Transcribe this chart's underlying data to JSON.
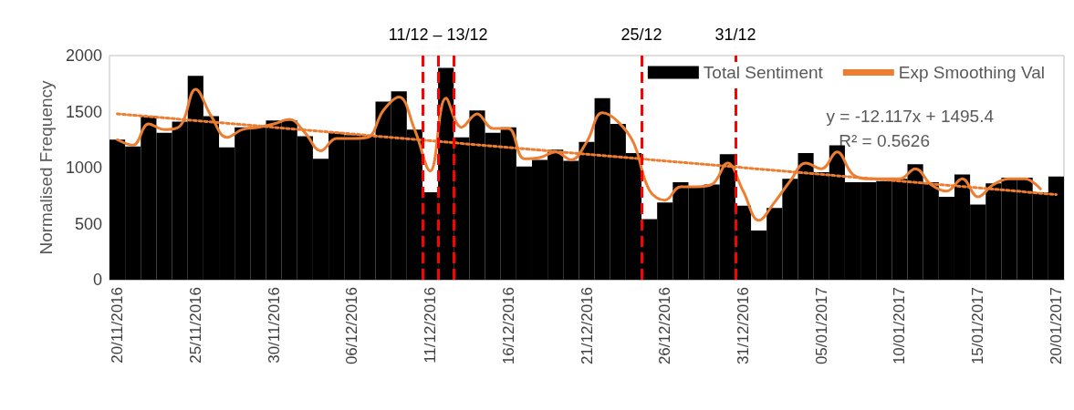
{
  "chart_data": {
    "type": "bar",
    "ylabel": "Normalised Frequency",
    "categories": [
      "20/11/2016",
      null,
      null,
      null,
      null,
      "25/11/2016",
      null,
      null,
      null,
      null,
      "30/11/2016",
      null,
      null,
      null,
      null,
      "06/12/2016",
      null,
      null,
      null,
      null,
      "11/12/2016",
      null,
      null,
      null,
      null,
      "16/12/2016",
      null,
      null,
      null,
      null,
      "21/12/2016",
      null,
      null,
      null,
      null,
      "26/12/2016",
      null,
      null,
      null,
      null,
      "31/12/2016",
      null,
      null,
      null,
      null,
      "05/01/2017",
      null,
      null,
      null,
      null,
      "10/01/2017",
      null,
      null,
      null,
      null,
      "15/01/2017",
      null,
      null,
      null,
      null,
      "20/01/2017"
    ],
    "series": [
      {
        "name": "Total Sentiment",
        "color": "#000000",
        "values": [
          1250,
          1190,
          1460,
          1310,
          1410,
          1820,
          1460,
          1180,
          1360,
          1360,
          1420,
          1420,
          1280,
          1080,
          1310,
          1290,
          1290,
          1590,
          1680,
          1340,
          780,
          1890,
          1270,
          1510,
          1310,
          1360,
          1010,
          1070,
          1160,
          1060,
          1230,
          1620,
          1390,
          1130,
          540,
          690,
          870,
          830,
          850,
          1120,
          660,
          440,
          640,
          900,
          1130,
          960,
          1200,
          870,
          870,
          880,
          900,
          1030,
          870,
          740,
          940,
          670,
          860,
          910,
          910,
          780,
          920
        ]
      },
      {
        "name": "Exp Smoothing Val",
        "type": "line",
        "color": "#ed7d31",
        "values": [
          1250,
          1200,
          1390,
          1340,
          1370,
          1700,
          1460,
          1270,
          1340,
          1360,
          1390,
          1430,
          1310,
          1150,
          1260,
          1260,
          1270,
          1510,
          1630,
          1340,
          970,
          1620,
          1360,
          1480,
          1350,
          1350,
          1080,
          1090,
          1140,
          1070,
          1230,
          1490,
          1410,
          1220,
          800,
          710,
          830,
          830,
          850,
          1040,
          790,
          530,
          690,
          880,
          1040,
          990,
          1140,
          940,
          900,
          900,
          900,
          990,
          850,
          790,
          900,
          740,
          850,
          900,
          900,
          810,
          null
        ]
      },
      {
        "type": "line",
        "color": "#ed7d31",
        "line_style": "dotted",
        "x": [
          "20/11/2016",
          "20/01/2017"
        ],
        "values": [
          1480,
          760
        ]
      }
    ],
    "ylim": [
      0,
      2000
    ],
    "yticks": [
      0,
      500,
      1000,
      1500,
      2000
    ],
    "legend": "top right",
    "marker": "none",
    "annotations": [
      "11/12 – 13/12",
      "25/12",
      "31/12",
      "y = -12.117x + 1495.4",
      "R² = 0.5626"
    ]
  }
}
